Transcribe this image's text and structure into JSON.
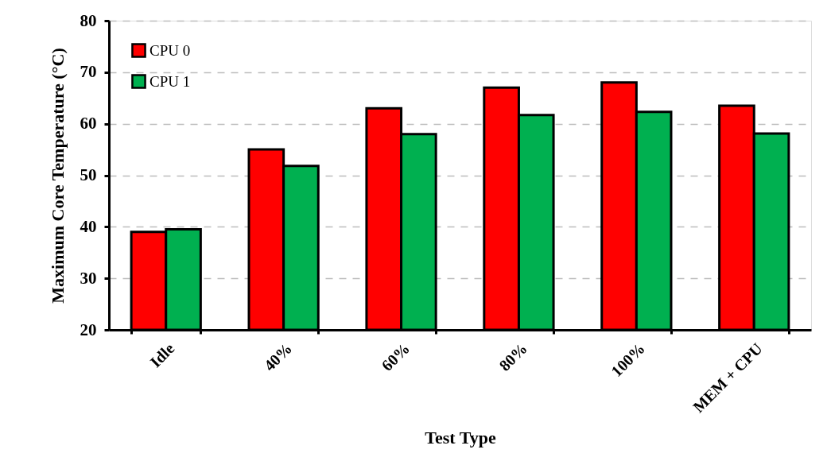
{
  "chart_data": {
    "type": "bar",
    "xlabel": "Test Type",
    "ylabel": "Maximum Core Temperature (°C)",
    "categories": [
      "Idle",
      "40%",
      "60%",
      "80%",
      "100%",
      "MEM + CPU"
    ],
    "series": [
      {
        "name": "CPU 0",
        "color": "#ff0000",
        "values": [
          39.0,
          55.0,
          63.0,
          67.0,
          68.0,
          63.5
        ]
      },
      {
        "name": "CPU 1",
        "color": "#00b050",
        "values": [
          39.5,
          51.8,
          58.0,
          61.7,
          62.3,
          58.1
        ]
      }
    ],
    "ylim": [
      20,
      80
    ],
    "yticks": [
      20,
      30,
      40,
      50,
      60,
      70,
      80
    ],
    "grid": "y",
    "legend": "top left"
  }
}
